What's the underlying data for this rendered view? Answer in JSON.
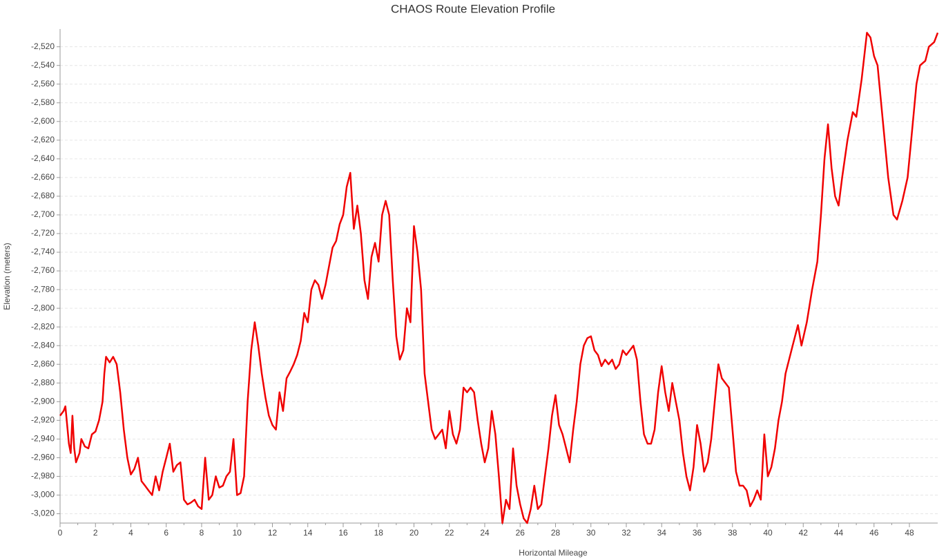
{
  "chart_data": {
    "type": "line",
    "title": "CHAOS Route Elevation Profile",
    "xlabel": "Horizontal Mileage",
    "ylabel": "Elevation (meters)",
    "color": "#f00000",
    "grid": true,
    "xlim": [
      0,
      49.6
    ],
    "ylim": [
      -3030,
      -2501
    ],
    "xticks": [
      0,
      2,
      4,
      6,
      8,
      10,
      12,
      14,
      16,
      18,
      20,
      22,
      24,
      26,
      28,
      30,
      32,
      34,
      36,
      38,
      40,
      42,
      44,
      46,
      48
    ],
    "yticks": [
      {
        "value": -3020,
        "label": "-3,020"
      },
      {
        "value": -3000,
        "label": "-3,000"
      },
      {
        "value": -2980,
        "label": "-2,980"
      },
      {
        "value": -2960,
        "label": "-2,960"
      },
      {
        "value": -2940,
        "label": "-2,940"
      },
      {
        "value": -2920,
        "label": "-2,920"
      },
      {
        "value": -2900,
        "label": "-2,900"
      },
      {
        "value": -2880,
        "label": "-2,880"
      },
      {
        "value": -2860,
        "label": "-2,860"
      },
      {
        "value": -2840,
        "label": "-2,840"
      },
      {
        "value": -2820,
        "label": "-2,820"
      },
      {
        "value": -2800,
        "label": "-2,800"
      },
      {
        "value": -2780,
        "label": "-2,780"
      },
      {
        "value": -2760,
        "label": "-2,760"
      },
      {
        "value": -2740,
        "label": "-2,740"
      },
      {
        "value": -2720,
        "label": "-2,720"
      },
      {
        "value": -2700,
        "label": "-2,700"
      },
      {
        "value": -2680,
        "label": "-2,680"
      },
      {
        "value": -2660,
        "label": "-2,660"
      },
      {
        "value": -2640,
        "label": "-2,640"
      },
      {
        "value": -2620,
        "label": "-2,620"
      },
      {
        "value": -2600,
        "label": "-2,600"
      },
      {
        "value": -2580,
        "label": "-2,580"
      },
      {
        "value": -2560,
        "label": "-2,560"
      },
      {
        "value": -2540,
        "label": "-2,540"
      },
      {
        "value": -2520,
        "label": "-2,520"
      }
    ],
    "x": [
      0,
      0.2,
      0.3,
      0.5,
      0.6,
      0.7,
      0.8,
      0.9,
      1.1,
      1.2,
      1.4,
      1.6,
      1.8,
      2.0,
      2.2,
      2.4,
      2.5,
      2.6,
      2.8,
      3.0,
      3.2,
      3.4,
      3.6,
      3.8,
      4.0,
      4.2,
      4.4,
      4.6,
      4.8,
      5.0,
      5.2,
      5.4,
      5.6,
      5.8,
      6.0,
      6.2,
      6.4,
      6.6,
      6.8,
      7.0,
      7.2,
      7.4,
      7.6,
      7.8,
      8.0,
      8.2,
      8.4,
      8.6,
      8.8,
      9.0,
      9.2,
      9.4,
      9.6,
      9.8,
      10.0,
      10.2,
      10.4,
      10.6,
      10.8,
      11.0,
      11.2,
      11.4,
      11.6,
      11.8,
      12.0,
      12.2,
      12.4,
      12.6,
      12.8,
      13.0,
      13.2,
      13.4,
      13.6,
      13.8,
      14.0,
      14.2,
      14.4,
      14.6,
      14.8,
      15.0,
      15.2,
      15.4,
      15.6,
      15.8,
      16.0,
      16.2,
      16.4,
      16.6,
      16.8,
      17.0,
      17.2,
      17.4,
      17.6,
      17.8,
      18.0,
      18.2,
      18.4,
      18.6,
      18.8,
      19.0,
      19.2,
      19.4,
      19.6,
      19.8,
      20.0,
      20.2,
      20.4,
      20.6,
      20.8,
      21.0,
      21.2,
      21.4,
      21.6,
      21.8,
      22.0,
      22.2,
      22.4,
      22.6,
      22.8,
      23.0,
      23.2,
      23.4,
      23.6,
      23.8,
      24.0,
      24.2,
      24.4,
      24.6,
      24.8,
      25.0,
      25.2,
      25.4,
      25.6,
      25.8,
      26.0,
      26.2,
      26.4,
      26.6,
      26.8,
      27.0,
      27.2,
      27.4,
      27.6,
      27.8,
      28.0,
      28.2,
      28.4,
      28.6,
      28.8,
      29.0,
      29.2,
      29.4,
      29.6,
      29.8,
      30.0,
      30.2,
      30.4,
      30.6,
      30.8,
      31.0,
      31.2,
      31.4,
      31.6,
      31.8,
      32.0,
      32.2,
      32.4,
      32.6,
      32.8,
      33.0,
      33.2,
      33.4,
      33.6,
      33.8,
      34.0,
      34.2,
      34.4,
      34.6,
      34.8,
      35.0,
      35.2,
      35.4,
      35.6,
      35.8,
      36.0,
      36.2,
      36.4,
      36.6,
      36.8,
      37.0,
      37.2,
      37.4,
      37.6,
      37.8,
      38.0,
      38.2,
      38.4,
      38.6,
      38.8,
      39.0,
      39.2,
      39.4,
      39.6,
      39.8,
      40.0,
      40.2,
      40.4,
      40.6,
      40.8,
      41.0,
      41.4,
      41.7,
      41.9,
      42.2,
      42.5,
      42.8,
      43.0,
      43.2,
      43.4,
      43.6,
      43.8,
      44.0,
      44.2,
      44.5,
      44.8,
      45.0,
      45.3,
      45.6,
      45.8,
      46.0,
      46.2,
      46.5,
      46.8,
      47.1,
      47.3,
      47.6,
      47.9,
      48.1,
      48.4,
      48.6,
      48.9,
      49.1,
      49.4,
      49.6
    ],
    "values": [
      -2915,
      -2910,
      -2905,
      -2945,
      -2955,
      -2915,
      -2950,
      -2965,
      -2955,
      -2940,
      -2948,
      -2950,
      -2935,
      -2932,
      -2920,
      -2900,
      -2870,
      -2852,
      -2858,
      -2852,
      -2860,
      -2890,
      -2930,
      -2960,
      -2978,
      -2972,
      -2960,
      -2985,
      -2990,
      -2995,
      -3000,
      -2980,
      -2995,
      -2975,
      -2960,
      -2945,
      -2975,
      -2968,
      -2965,
      -3005,
      -3010,
      -3008,
      -3005,
      -3012,
      -3015,
      -2960,
      -3005,
      -3000,
      -2980,
      -2992,
      -2990,
      -2980,
      -2975,
      -2940,
      -3000,
      -2998,
      -2980,
      -2900,
      -2845,
      -2815,
      -2840,
      -2870,
      -2895,
      -2915,
      -2925,
      -2930,
      -2890,
      -2910,
      -2875,
      -2868,
      -2860,
      -2850,
      -2835,
      -2805,
      -2815,
      -2780,
      -2770,
      -2775,
      -2790,
      -2775,
      -2755,
      -2735,
      -2728,
      -2710,
      -2700,
      -2670,
      -2655,
      -2715,
      -2690,
      -2720,
      -2770,
      -2790,
      -2745,
      -2730,
      -2750,
      -2700,
      -2685,
      -2700,
      -2770,
      -2830,
      -2855,
      -2845,
      -2800,
      -2815,
      -2712,
      -2740,
      -2780,
      -2870,
      -2900,
      -2930,
      -2940,
      -2935,
      -2930,
      -2950,
      -2910,
      -2935,
      -2945,
      -2930,
      -2885,
      -2890,
      -2885,
      -2890,
      -2920,
      -2945,
      -2965,
      -2950,
      -2910,
      -2935,
      -2980,
      -3030,
      -3005,
      -3015,
      -2950,
      -2990,
      -3010,
      -3025,
      -3030,
      -3015,
      -2990,
      -3015,
      -3010,
      -2980,
      -2950,
      -2915,
      -2893,
      -2925,
      -2935,
      -2950,
      -2965,
      -2930,
      -2900,
      -2860,
      -2840,
      -2832,
      -2830,
      -2845,
      -2850,
      -2862,
      -2855,
      -2860,
      -2855,
      -2865,
      -2860,
      -2845,
      -2850,
      -2845,
      -2840,
      -2855,
      -2900,
      -2935,
      -2945,
      -2945,
      -2930,
      -2890,
      -2862,
      -2890,
      -2910,
      -2880,
      -2900,
      -2920,
      -2955,
      -2980,
      -2995,
      -2970,
      -2925,
      -2945,
      -2975,
      -2965,
      -2940,
      -2900,
      -2860,
      -2875,
      -2880,
      -2885,
      -2930,
      -2975,
      -2990,
      -2990,
      -2995,
      -3012,
      -3005,
      -2995,
      -3005,
      -2935,
      -2980,
      -2970,
      -2950,
      -2920,
      -2900,
      -2870,
      -2840,
      -2818,
      -2840,
      -2815,
      -2780,
      -2750,
      -2700,
      -2640,
      -2603,
      -2650,
      -2680,
      -2690,
      -2660,
      -2620,
      -2590,
      -2595,
      -2555,
      -2505,
      -2510,
      -2530,
      -2540,
      -2600,
      -2660,
      -2700,
      -2705,
      -2685,
      -2660,
      -2620,
      -2560,
      -2540,
      -2535,
      -2520,
      -2515,
      -2505
    ]
  }
}
